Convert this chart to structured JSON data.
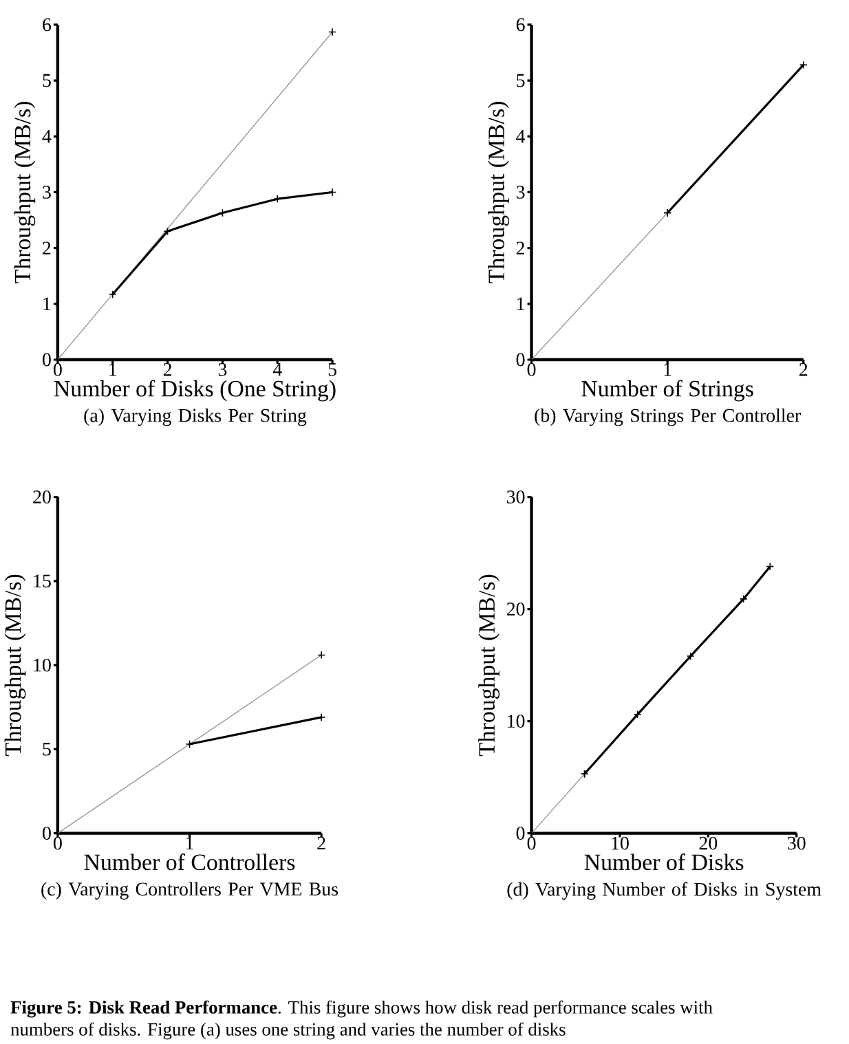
{
  "chart_data": [
    {
      "type": "line",
      "title": "(a) Varying Disks Per String",
      "xlabel": "Number of Disks (One String)",
      "ylabel": "Throughput (MB/s)",
      "xlim": [
        0,
        5
      ],
      "ylim": [
        0,
        6
      ],
      "xticks": [
        0,
        1,
        2,
        3,
        4,
        5
      ],
      "yticks": [
        0,
        1,
        2,
        3,
        4,
        5,
        6
      ],
      "marker": "cross",
      "grid": false,
      "series": [
        {
          "color": "#999999",
          "x": [
            0,
            5
          ],
          "values": [
            0,
            5.87
          ]
        },
        {
          "color": "#000000",
          "x": [
            1,
            2,
            3,
            4,
            5
          ],
          "values": [
            1.17,
            2.3,
            2.63,
            2.88,
            3.0
          ]
        }
      ]
    },
    {
      "type": "line",
      "title": "(b) Varying Strings Per Controller",
      "xlabel": "Number of Strings",
      "ylabel": "Throughput (MB/s)",
      "xlim": [
        0,
        2
      ],
      "ylim": [
        0,
        6
      ],
      "xticks": [
        0,
        1,
        2
      ],
      "yticks": [
        0,
        1,
        2,
        3,
        4,
        5,
        6
      ],
      "marker": "cross",
      "grid": false,
      "series": [
        {
          "color": "#999999",
          "x": [
            0,
            1
          ],
          "values": [
            0,
            2.63
          ]
        },
        {
          "color": "#000000",
          "x": [
            1,
            2
          ],
          "values": [
            2.63,
            5.28
          ]
        }
      ]
    },
    {
      "type": "line",
      "title": "(c) Varying Controllers Per VME Bus",
      "xlabel": "Number of Controllers",
      "ylabel": "Throughput (MB/s)",
      "xlim": [
        0,
        2
      ],
      "ylim": [
        0,
        20
      ],
      "xticks": [
        0,
        1,
        2
      ],
      "yticks": [
        0,
        5,
        10,
        15,
        20
      ],
      "marker": "cross",
      "grid": false,
      "series": [
        {
          "color": "#999999",
          "x": [
            0,
            2
          ],
          "values": [
            0,
            10.6
          ]
        },
        {
          "color": "#000000",
          "x": [
            1,
            2
          ],
          "values": [
            5.3,
            6.9
          ]
        }
      ]
    },
    {
      "type": "line",
      "title": "(d) Varying Number of Disks in System",
      "xlabel": "Number of Disks",
      "ylabel": "Throughput (MB/s)",
      "xlim": [
        0,
        30
      ],
      "ylim": [
        0,
        30
      ],
      "xticks": [
        0,
        10,
        20,
        30
      ],
      "yticks": [
        0,
        10,
        20,
        30
      ],
      "marker": "cross",
      "grid": false,
      "annotations": [
        "**Figure 5: Disk Read Performance**. This figure shows how disk read performance scales with",
        "numbers of disks. Figure (a) uses one string and varies the number of disks"
      ],
      "series": [
        {
          "color": "#999999",
          "x": [
            0,
            6
          ],
          "values": [
            0,
            5.3
          ]
        },
        {
          "color": "#000000",
          "x": [
            6,
            12,
            18,
            24,
            27
          ],
          "values": [
            5.3,
            10.6,
            15.8,
            20.9,
            23.8
          ]
        }
      ]
    }
  ]
}
